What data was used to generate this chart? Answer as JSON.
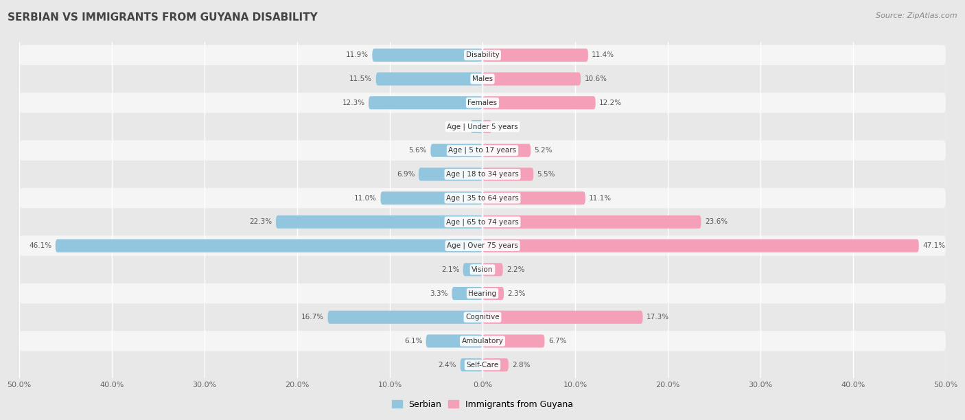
{
  "title": "SERBIAN VS IMMIGRANTS FROM GUYANA DISABILITY",
  "source": "Source: ZipAtlas.com",
  "categories": [
    "Disability",
    "Males",
    "Females",
    "Age | Under 5 years",
    "Age | 5 to 17 years",
    "Age | 18 to 34 years",
    "Age | 35 to 64 years",
    "Age | 65 to 74 years",
    "Age | Over 75 years",
    "Vision",
    "Hearing",
    "Cognitive",
    "Ambulatory",
    "Self-Care"
  ],
  "serbian": [
    11.9,
    11.5,
    12.3,
    1.3,
    5.6,
    6.9,
    11.0,
    22.3,
    46.1,
    2.1,
    3.3,
    16.7,
    6.1,
    2.4
  ],
  "guyana": [
    11.4,
    10.6,
    12.2,
    1.0,
    5.2,
    5.5,
    11.1,
    23.6,
    47.1,
    2.2,
    2.3,
    17.3,
    6.7,
    2.8
  ],
  "serbian_color": "#92c5de",
  "guyana_color": "#f4a0b8",
  "max_val": 50.0,
  "bg_color": "#e8e8e8",
  "row_colors": [
    "#f5f5f5",
    "#e8e8e8"
  ],
  "xtick_labels": [
    "50.0%",
    "40.0%",
    "30.0%",
    "20.0%",
    "10.0%",
    "0.0%",
    "10.0%",
    "20.0%",
    "30.0%",
    "40.0%",
    "50.0%"
  ],
  "xtick_vals": [
    -50,
    -40,
    -30,
    -20,
    -10,
    0,
    10,
    20,
    30,
    40,
    50
  ]
}
